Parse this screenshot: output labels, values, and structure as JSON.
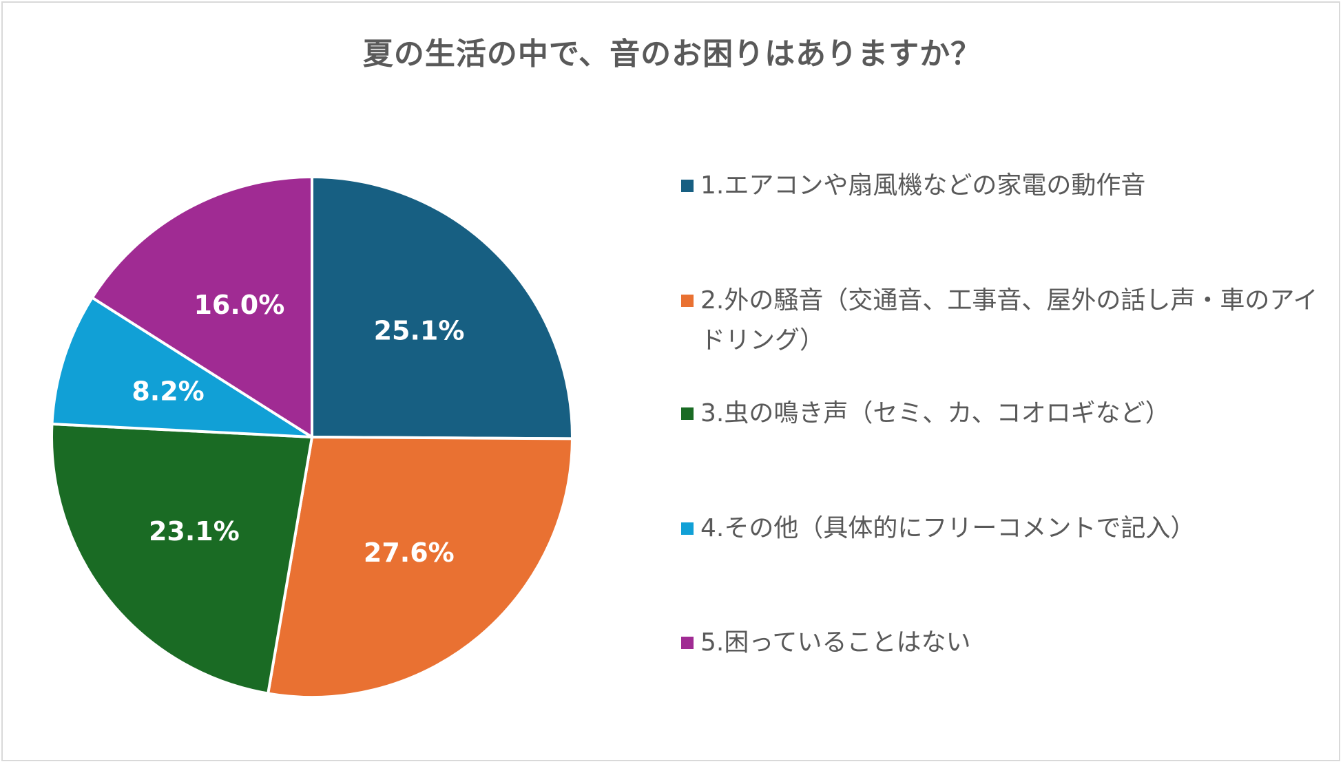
{
  "chart_data": {
    "type": "pie",
    "title": "夏の生活の中で、音のお困りはありますか？",
    "categories": [
      "1.エアコンや扇風機などの家電の動作音",
      "2.外の騒音（交通音、工事音、屋外の話し声・車のアイドリング）",
      "3.虫の鳴き声（セミ、カ、コオロギなど）",
      "4.その他（具体的にフリーコメントで記入）",
      "5.困っていることはない"
    ],
    "values": [
      25.1,
      27.6,
      23.1,
      8.2,
      16.0
    ],
    "data_labels": [
      "25.1%",
      "27.6%",
      "23.1%",
      "8.2%",
      "16.0%"
    ],
    "colors": [
      "#175f82",
      "#e97132",
      "#1a6b24",
      "#11a0d6",
      "#a02b93"
    ],
    "start_angle": "12 o'clock",
    "direction": "clockwise",
    "legend_position": "right"
  }
}
